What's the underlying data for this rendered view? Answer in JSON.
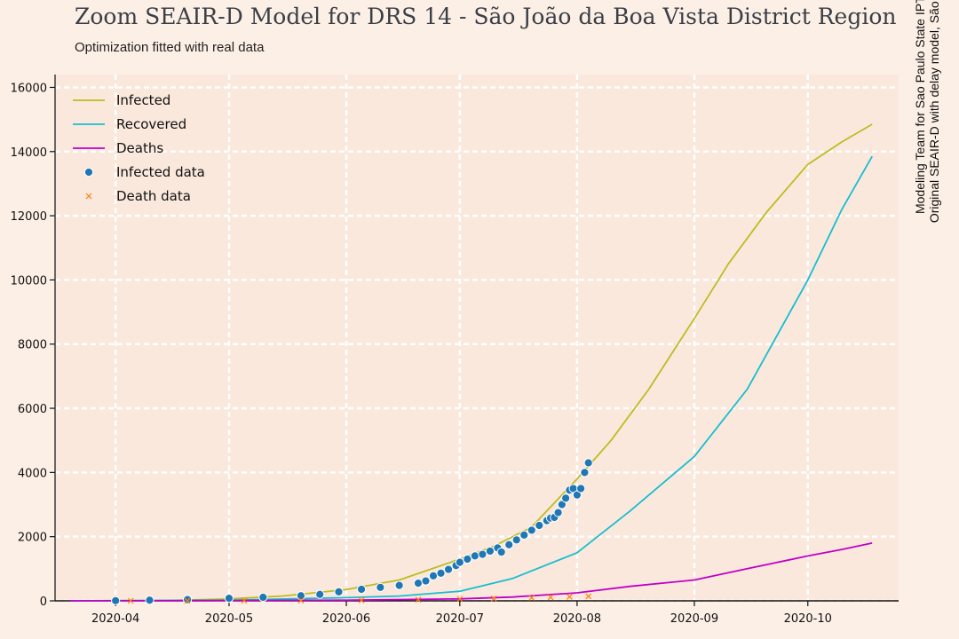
{
  "header": {
    "title": "Zoom SEAIR-D Model for DRS 14 - São João da Boa Vista District Region",
    "subtitle": "Optimization fitted with real data"
  },
  "credits": {
    "line1": "Modeling Team for Sao Paulo State IPT, USP, ATS",
    "line2": "Original SEAIR-D with delay model, São Paulo, Brazil"
  },
  "colors": {
    "background": "#fcefe6",
    "plot_area": "#fae8dc",
    "grid": "#ffffff",
    "infected": "#bcbd22",
    "recovered": "#17becf",
    "deaths": "#c000c8",
    "infected_data": "#1f77b4",
    "death_data": "#ff7f0e"
  },
  "chart_data": {
    "type": "line",
    "title": "Zoom SEAIR-D Model for DRS 14 - São João da Boa Vista District Region",
    "subtitle": "Optimization fitted with real data",
    "xlabel": "",
    "ylabel": "",
    "xlim": [
      "2020-03-16",
      "2020-10-25"
    ],
    "ylim": [
      0,
      16400
    ],
    "grid": true,
    "legend_position": "top-left",
    "x_ticks": [
      "2020-04",
      "2020-05",
      "2020-06",
      "2020-07",
      "2020-08",
      "2020-09",
      "2020-10"
    ],
    "y_ticks": [
      "0",
      "2000",
      "4000",
      "6000",
      "8000",
      "10000",
      "12000",
      "14000",
      "16000"
    ],
    "series": [
      {
        "name": "Infected",
        "kind": "line",
        "color": "#bcbd22",
        "points": [
          [
            "2020-03-20",
            0
          ],
          [
            "2020-04-15",
            10
          ],
          [
            "2020-05-01",
            60
          ],
          [
            "2020-05-15",
            150
          ],
          [
            "2020-06-01",
            350
          ],
          [
            "2020-06-15",
            650
          ],
          [
            "2020-07-01",
            1300
          ],
          [
            "2020-07-10",
            1700
          ],
          [
            "2020-07-20",
            2300
          ],
          [
            "2020-08-01",
            3800
          ],
          [
            "2020-08-10",
            5000
          ],
          [
            "2020-08-20",
            6600
          ],
          [
            "2020-09-01",
            8800
          ],
          [
            "2020-09-10",
            10500
          ],
          [
            "2020-09-20",
            12100
          ],
          [
            "2020-10-01",
            13600
          ],
          [
            "2020-10-10",
            14300
          ],
          [
            "2020-10-18",
            14850
          ]
        ]
      },
      {
        "name": "Recovered",
        "kind": "line",
        "color": "#17becf",
        "points": [
          [
            "2020-03-20",
            0
          ],
          [
            "2020-05-01",
            20
          ],
          [
            "2020-06-01",
            100
          ],
          [
            "2020-06-15",
            150
          ],
          [
            "2020-07-01",
            300
          ],
          [
            "2020-07-15",
            700
          ],
          [
            "2020-08-01",
            1500
          ],
          [
            "2020-08-15",
            2800
          ],
          [
            "2020-09-01",
            4500
          ],
          [
            "2020-09-15",
            6600
          ],
          [
            "2020-10-01",
            10000
          ],
          [
            "2020-10-10",
            12200
          ],
          [
            "2020-10-18",
            13850
          ]
        ]
      },
      {
        "name": "Deaths",
        "kind": "line",
        "color": "#c000c8",
        "points": [
          [
            "2020-03-20",
            0
          ],
          [
            "2020-06-01",
            20
          ],
          [
            "2020-07-01",
            60
          ],
          [
            "2020-07-15",
            120
          ],
          [
            "2020-08-01",
            250
          ],
          [
            "2020-08-15",
            450
          ],
          [
            "2020-09-01",
            650
          ],
          [
            "2020-09-15",
            1000
          ],
          [
            "2020-10-01",
            1400
          ],
          [
            "2020-10-10",
            1600
          ],
          [
            "2020-10-18",
            1800
          ]
        ]
      },
      {
        "name": "Infected data",
        "kind": "scatter",
        "color": "#1f77b4",
        "points": [
          [
            "2020-04-01",
            5
          ],
          [
            "2020-04-10",
            20
          ],
          [
            "2020-04-20",
            40
          ],
          [
            "2020-05-01",
            80
          ],
          [
            "2020-05-10",
            110
          ],
          [
            "2020-05-20",
            160
          ],
          [
            "2020-05-25",
            200
          ],
          [
            "2020-05-30",
            280
          ],
          [
            "2020-06-05",
            360
          ],
          [
            "2020-06-10",
            420
          ],
          [
            "2020-06-15",
            480
          ],
          [
            "2020-06-20",
            550
          ],
          [
            "2020-06-22",
            620
          ],
          [
            "2020-06-24",
            780
          ],
          [
            "2020-06-26",
            860
          ],
          [
            "2020-06-28",
            980
          ],
          [
            "2020-06-30",
            1100
          ],
          [
            "2020-07-01",
            1200
          ],
          [
            "2020-07-03",
            1300
          ],
          [
            "2020-07-05",
            1400
          ],
          [
            "2020-07-07",
            1450
          ],
          [
            "2020-07-09",
            1550
          ],
          [
            "2020-07-11",
            1650
          ],
          [
            "2020-07-12",
            1520
          ],
          [
            "2020-07-14",
            1750
          ],
          [
            "2020-07-16",
            1900
          ],
          [
            "2020-07-18",
            2050
          ],
          [
            "2020-07-20",
            2200
          ],
          [
            "2020-07-22",
            2350
          ],
          [
            "2020-07-24",
            2500
          ],
          [
            "2020-07-25",
            2580
          ],
          [
            "2020-07-26",
            2600
          ],
          [
            "2020-07-27",
            2750
          ],
          [
            "2020-07-28",
            3000
          ],
          [
            "2020-07-29",
            3200
          ],
          [
            "2020-07-30",
            3450
          ],
          [
            "2020-07-31",
            3500
          ],
          [
            "2020-08-01",
            3300
          ],
          [
            "2020-08-02",
            3500
          ],
          [
            "2020-08-03",
            4000
          ],
          [
            "2020-08-04",
            4300
          ]
        ]
      },
      {
        "name": "Death data",
        "kind": "scatter",
        "color": "#ff7f0e",
        "points": [
          [
            "2020-04-05",
            0
          ],
          [
            "2020-04-20",
            2
          ],
          [
            "2020-05-05",
            5
          ],
          [
            "2020-05-20",
            10
          ],
          [
            "2020-06-05",
            20
          ],
          [
            "2020-06-20",
            35
          ],
          [
            "2020-07-01",
            55
          ],
          [
            "2020-07-10",
            70
          ],
          [
            "2020-07-20",
            95
          ],
          [
            "2020-07-25",
            110
          ],
          [
            "2020-07-30",
            125
          ],
          [
            "2020-08-04",
            140
          ]
        ]
      }
    ]
  }
}
